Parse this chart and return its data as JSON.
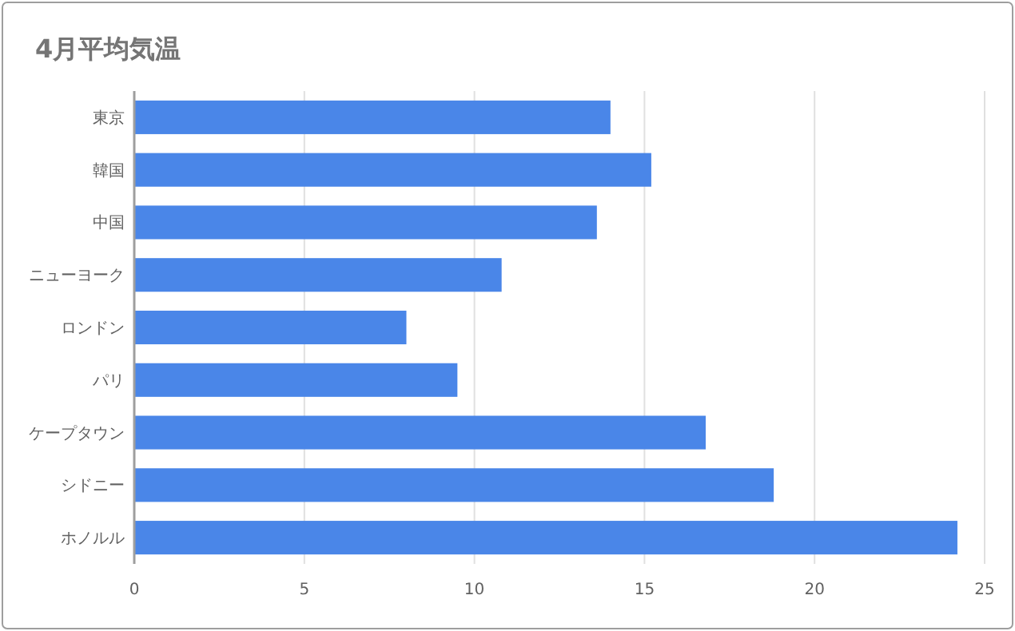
{
  "chart_data": {
    "type": "bar",
    "orientation": "horizontal",
    "title": "4月平均気温",
    "categories": [
      "東京",
      "韓国",
      "中国",
      "ニューヨーク",
      "ロンドン",
      "パリ",
      "ケープタウン",
      "シドニー",
      "ホノルル"
    ],
    "values": [
      14.0,
      15.2,
      13.6,
      10.8,
      8.0,
      9.5,
      16.8,
      18.8,
      24.2
    ],
    "color": "#4a86e8",
    "xlim": [
      0,
      25
    ],
    "xticks": [
      0,
      5,
      10,
      15,
      20,
      25
    ],
    "grid": "x"
  }
}
